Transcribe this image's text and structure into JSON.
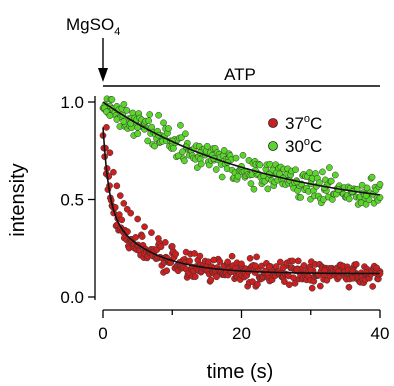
{
  "chart_data": {
    "type": "scatter",
    "title": "",
    "xlabel": "time (s)",
    "ylabel": "intensity",
    "xlim": [
      0,
      40
    ],
    "ylim": [
      0,
      1.05
    ],
    "xticks": [
      0,
      20,
      40
    ],
    "yticks": [
      0.0,
      0.5,
      1.0
    ],
    "x_tick_labels": [
      "0",
      "20",
      "40"
    ],
    "y_tick_labels": [
      "0.0",
      "0.5",
      "1.0"
    ],
    "grid": false,
    "legend_position": "top-right",
    "annotations": {
      "mgso4": {
        "text": "MgSO",
        "subscript": "4",
        "x": 0
      },
      "atp": {
        "text": "ATP",
        "x_start": 0,
        "x_end": 40
      }
    },
    "series": [
      {
        "name": "37",
        "name_superscript": "o",
        "name_suffix": "C",
        "color": "#cc1f1f",
        "fit": {
          "type": "biexponential",
          "a1": 0.42,
          "k1": 1.2,
          "a2": 0.33,
          "k2": 0.16,
          "offset": 0.12
        },
        "x": [
          0.2,
          0.5,
          1.0,
          1.5,
          2.0,
          2.5,
          3.0,
          3.5,
          4.0,
          5.0,
          6.0,
          7.0,
          8.0,
          9.0,
          10.0,
          12.0,
          14.0,
          16.0,
          18.0,
          20.0,
          22.0,
          24.0,
          26.0,
          28.0,
          30.0,
          32.0,
          34.0,
          36.0,
          38.0,
          40.0
        ],
        "y": [
          0.97,
          0.87,
          0.74,
          0.64,
          0.57,
          0.52,
          0.48,
          0.45,
          0.43,
          0.4,
          0.36,
          0.33,
          0.3,
          0.28,
          0.26,
          0.23,
          0.21,
          0.19,
          0.18,
          0.17,
          0.16,
          0.155,
          0.15,
          0.14,
          0.14,
          0.135,
          0.13,
          0.13,
          0.125,
          0.12
        ]
      },
      {
        "name": "30",
        "name_superscript": "o",
        "name_suffix": "C",
        "color": "#5ad52a",
        "fit": {
          "type": "exponential",
          "a": 0.58,
          "k": 0.043,
          "offset": 0.42
        },
        "x": [
          0.2,
          0.5,
          1.0,
          2.0,
          3.0,
          4.0,
          5.0,
          6.0,
          8.0,
          10.0,
          12.0,
          14.0,
          16.0,
          18.0,
          20.0,
          22.0,
          24.0,
          26.0,
          28.0,
          30.0,
          32.0,
          34.0,
          36.0,
          38.0,
          40.0
        ],
        "y": [
          0.97,
          0.95,
          0.93,
          0.91,
          0.9,
          0.89,
          0.87,
          0.86,
          0.83,
          0.8,
          0.77,
          0.74,
          0.71,
          0.69,
          0.67,
          0.65,
          0.63,
          0.61,
          0.59,
          0.58,
          0.56,
          0.55,
          0.54,
          0.52,
          0.51
        ]
      }
    ]
  }
}
